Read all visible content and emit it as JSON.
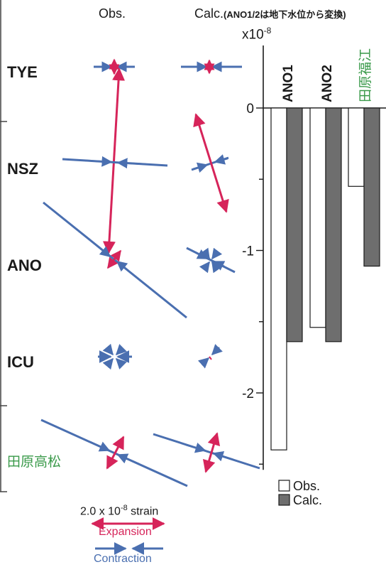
{
  "header": {
    "obs_label": "Obs.",
    "calc_label": "Calc.",
    "calc_note": "(ANO1/2は地下水位から変換)"
  },
  "stations": [
    {
      "label": "TYE",
      "color": "#1a1a1a"
    },
    {
      "label": "NSZ",
      "color": "#1a1a1a"
    },
    {
      "label": "ANO",
      "color": "#1a1a1a"
    },
    {
      "label": "ICU",
      "color": "#1a1a1a"
    },
    {
      "label": "田原高松",
      "color": "#3a9a4a"
    }
  ],
  "scale_legend": {
    "scale_text": "2.0 x 10",
    "scale_exp": "-8",
    "scale_unit": " strain",
    "expansion_label": "Expansion",
    "contraction_label": "Contraction",
    "expansion_color": "#d6245a",
    "contraction_color": "#4a6fb0"
  },
  "chart_data": {
    "type": "bar",
    "multiplier_text": "x10",
    "multiplier_exp": "-8",
    "categories": [
      "ANO1",
      "ANO2",
      "田原福江"
    ],
    "category_colors": [
      "#1a1a1a",
      "#1a1a1a",
      "#3a9a4a"
    ],
    "series": [
      {
        "name": "Obs.",
        "values": [
          -2.4,
          -1.54,
          -0.55
        ],
        "fill": "#ffffff"
      },
      {
        "name": "Calc.",
        "values": [
          -1.64,
          -1.64,
          -1.11
        ],
        "fill": "#6e6e6e"
      }
    ],
    "ylim": [
      -2.5,
      0
    ],
    "yticks": [
      0,
      -1,
      -2
    ],
    "ytick_labels": [
      "0",
      "-1",
      "-2"
    ],
    "legend": [
      {
        "label": "Obs.",
        "fill": "#ffffff"
      },
      {
        "label": "Calc.",
        "fill": "#6e6e6e"
      }
    ],
    "legend_position": "bottom-right"
  }
}
